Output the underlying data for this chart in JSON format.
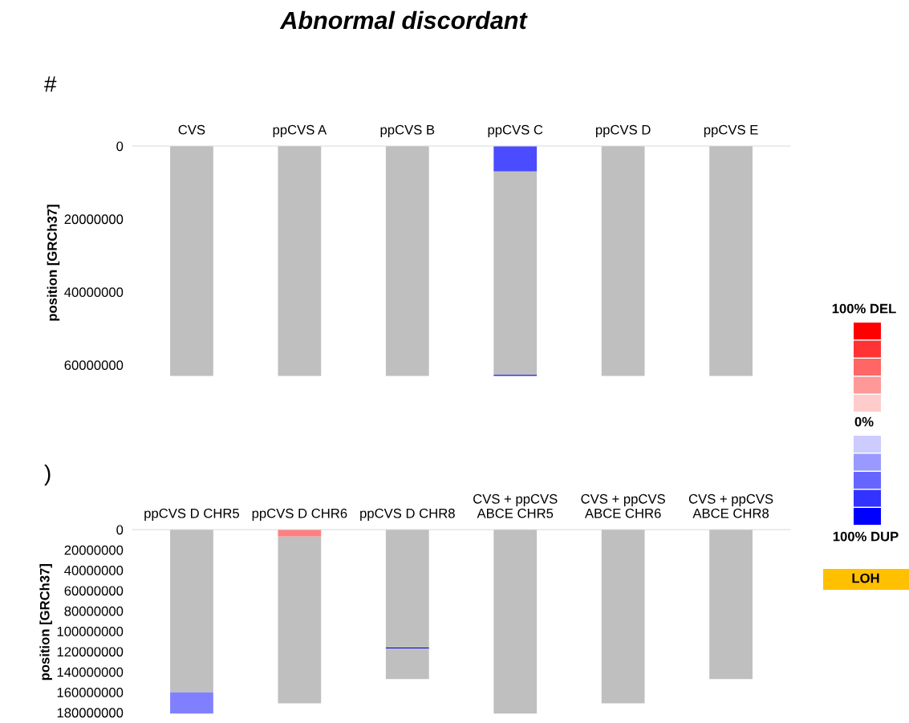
{
  "chart_data": [
    {
      "type": "bar",
      "stacked": true,
      "title": "Abnormal discordant",
      "annotations": [
        "#"
      ],
      "ylabel": "position [GRCh37]",
      "categories": [
        "CVS",
        "ppCVS A",
        "ppCVS B",
        "ppCVS C",
        "ppCVS D",
        "ppCVS E"
      ],
      "series": [
        {
          "colors": [
            "#bfbfbf",
            "#bfbfbf",
            "#bfbfbf",
            "#4b4bff",
            "#bfbfbf",
            "#bfbfbf"
          ],
          "values": [
            63000000,
            63000000,
            63000000,
            7000000,
            63000000,
            63000000
          ]
        },
        {
          "colors": [
            "#bfbfbf",
            "#bfbfbf",
            "#bfbfbf",
            "#bfbfbf",
            "#bfbfbf",
            "#bfbfbf"
          ],
          "values": [
            null,
            null,
            null,
            55700000,
            null,
            null
          ]
        },
        {
          "colors": [
            "#3333ff",
            "#3333ff",
            "#3333ff",
            "#3333ff",
            "#3333ff",
            "#3333ff"
          ],
          "values": [
            null,
            null,
            null,
            300000,
            null,
            null
          ]
        }
      ],
      "ylim": [
        64000000,
        0
      ],
      "yticks": [
        0,
        20000000,
        40000000,
        60000000
      ],
      "grid": false,
      "legend": false
    },
    {
      "type": "bar",
      "stacked": true,
      "annotations": [
        ")"
      ],
      "ylabel": "position [GRCh37]",
      "categories": [
        "ppCVS D CHR5",
        "ppCVS D CHR6",
        "ppCVS D CHR8",
        "CVS + ppCVS\nABCE CHR5",
        "CVS + ppCVS\nABCE CHR6",
        "CVS + ppCVS\nABCE CHR8"
      ],
      "series": [
        {
          "colors": [
            "#bfbfbf",
            "#ff8080",
            "#bfbfbf",
            "#bfbfbf",
            "#bfbfbf",
            "#bfbfbf"
          ],
          "values": [
            160000000,
            7000000,
            116000000,
            181000000,
            171000000,
            147000000
          ]
        },
        {
          "colors": [
            "#8080ff",
            "#bfbfbf",
            "#0000cc",
            "#bfbfbf",
            "#bfbfbf",
            "#bfbfbf"
          ],
          "values": [
            21000000,
            164000000,
            1000000,
            null,
            null,
            null
          ]
        },
        {
          "colors": [
            "#bfbfbf",
            "#bfbfbf",
            "#bfbfbf",
            "#bfbfbf",
            "#bfbfbf",
            "#bfbfbf"
          ],
          "values": [
            null,
            null,
            30000000,
            null,
            null,
            null
          ]
        }
      ],
      "ylim": [
        182000000,
        0
      ],
      "yticks": [
        0,
        20000000,
        40000000,
        60000000,
        80000000,
        100000000,
        120000000,
        140000000,
        160000000,
        180000000
      ],
      "grid": false,
      "legend": false
    },
    {
      "type": "other",
      "title": "100% DEL",
      "annotations": [
        "0%",
        "100% DUP",
        "LOH"
      ],
      "colors": [
        "#ff0000",
        "#ff3333",
        "#ff6666",
        "#ff9999",
        "#ffcccc",
        "#ccccff",
        "#9999ff",
        "#6666ff",
        "#3333ff",
        "#0000ff",
        "#ffc000"
      ]
    }
  ]
}
